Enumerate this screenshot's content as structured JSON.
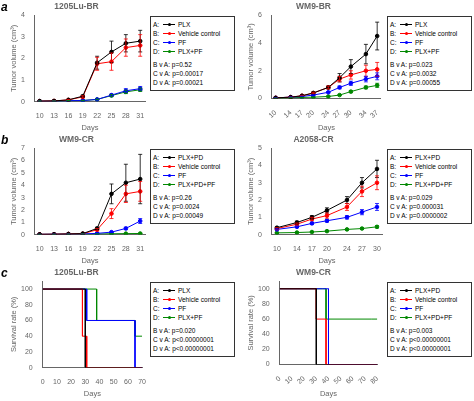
{
  "chart_data": [
    {
      "type": "line",
      "title": "1205Lu-BR",
      "panel_label": "a",
      "xlabel": "Days",
      "ylabel": "Tumor volume (cm³)",
      "x": [
        10,
        13,
        16,
        19,
        22,
        25,
        28,
        31
      ],
      "xlim": [
        9,
        32
      ],
      "xticks": [
        10,
        13,
        16,
        19,
        22,
        25,
        28,
        31
      ],
      "ylim": [
        0,
        4
      ],
      "yticks": [
        0,
        1,
        2,
        3,
        4
      ],
      "grid": false,
      "legend": "right",
      "marker": "o",
      "series": [
        {
          "name": "PLX",
          "key": "A:",
          "color": "#000000",
          "values": [
            0.02,
            0.03,
            0.08,
            0.25,
            1.8,
            2.3,
            2.7,
            2.8
          ],
          "errors": [
            0.01,
            0.01,
            0.02,
            0.05,
            0.3,
            0.5,
            0.4,
            0.5
          ]
        },
        {
          "name": "Vehicle control",
          "key": "B:",
          "color": "#ff0000",
          "values": [
            0.02,
            0.03,
            0.08,
            0.22,
            1.75,
            1.85,
            2.5,
            2.6
          ],
          "errors": [
            0.01,
            0.01,
            0.02,
            0.05,
            0.3,
            0.4,
            0.4,
            0.5
          ]
        },
        {
          "name": "PF",
          "key": "C:",
          "color": "#0000ff",
          "values": [
            0.02,
            0.02,
            0.04,
            0.05,
            0.1,
            0.3,
            0.5,
            0.6
          ],
          "errors": [
            0.01,
            0.01,
            0.01,
            0.01,
            0.02,
            0.05,
            0.1,
            0.1
          ]
        },
        {
          "name": "PLX+PF",
          "key": "D:",
          "color": "#008800",
          "values": [
            0.02,
            0.02,
            0.04,
            0.05,
            0.1,
            0.28,
            0.45,
            0.55
          ],
          "errors": [
            0.01,
            0.01,
            0.01,
            0.01,
            0.02,
            0.05,
            0.08,
            0.08
          ]
        }
      ],
      "annotations": [
        "B v A: p=0.52",
        "C v A: p=0.00017",
        "D v A: p=0.00021"
      ]
    },
    {
      "type": "line",
      "title": "WM9-BR",
      "xlabel": "Days",
      "ylabel": "Tumor volume (cm³)",
      "x": [
        10,
        14,
        17,
        20,
        24,
        27,
        30,
        34,
        37
      ],
      "xlim": [
        9,
        38
      ],
      "xticks": [
        10,
        14,
        17,
        20,
        24,
        27,
        30,
        34,
        37
      ],
      "ylim": [
        0,
        6
      ],
      "yticks": [
        0,
        2,
        4,
        6
      ],
      "grid": false,
      "legend": "right",
      "marker": "o",
      "series": [
        {
          "name": "PLX",
          "key": "A:",
          "color": "#000000",
          "values": [
            0.05,
            0.1,
            0.2,
            0.4,
            0.8,
            1.5,
            2.3,
            3.2,
            4.5
          ],
          "errors": [
            0.01,
            0.02,
            0.03,
            0.05,
            0.1,
            0.3,
            0.5,
            0.7,
            1.0
          ]
        },
        {
          "name": "Vehicle control",
          "key": "B:",
          "color": "#ff0000",
          "values": [
            0.05,
            0.1,
            0.2,
            0.4,
            0.8,
            1.4,
            1.7,
            2.0,
            2.1
          ],
          "errors": [
            0.01,
            0.02,
            0.03,
            0.05,
            0.1,
            0.2,
            0.3,
            0.4,
            0.5
          ]
        },
        {
          "name": "PF",
          "key": "C:",
          "color": "#0000ff",
          "values": [
            0.05,
            0.1,
            0.15,
            0.25,
            0.45,
            0.8,
            1.1,
            1.4,
            1.6
          ],
          "errors": [
            0.01,
            0.02,
            0.02,
            0.03,
            0.05,
            0.1,
            0.15,
            0.2,
            0.25
          ]
        },
        {
          "name": "PLX+PF",
          "key": "D:",
          "color": "#008800",
          "values": [
            0.02,
            0.05,
            0.08,
            0.1,
            0.15,
            0.25,
            0.5,
            0.8,
            0.95
          ],
          "errors": [
            0.01,
            0.01,
            0.01,
            0.02,
            0.02,
            0.03,
            0.08,
            0.1,
            0.15
          ]
        }
      ],
      "annotations": [
        "B v A: p=0.023",
        "C v A: p=0.0032",
        "D v A: p=0.00055"
      ]
    },
    {
      "type": "line",
      "title": "WM9-CR",
      "panel_label": "b",
      "xlabel": "Days",
      "ylabel": "Tumor volume (cm³)",
      "x": [
        10,
        13,
        16,
        19,
        22,
        25,
        28,
        31
      ],
      "xlim": [
        9,
        32
      ],
      "xticks": [
        10,
        13,
        16,
        19,
        22,
        25,
        28,
        31
      ],
      "ylim": [
        0,
        7
      ],
      "yticks": [
        0,
        1,
        2,
        3,
        4,
        5,
        6,
        7
      ],
      "grid": false,
      "legend": "right",
      "marker": "o",
      "series": [
        {
          "name": "PLX+PD",
          "key": "A:",
          "color": "#000000",
          "values": [
            0.02,
            0.03,
            0.05,
            0.08,
            0.5,
            3.3,
            4.2,
            4.5
          ],
          "errors": [
            0.01,
            0.01,
            0.01,
            0.02,
            0.1,
            0.8,
            1.5,
            2.0
          ]
        },
        {
          "name": "Vehicle control",
          "key": "B:",
          "color": "#ff0000",
          "values": [
            0.02,
            0.03,
            0.05,
            0.07,
            0.4,
            1.7,
            3.3,
            3.5
          ],
          "errors": [
            0.01,
            0.01,
            0.01,
            0.01,
            0.1,
            0.4,
            0.7,
            0.8
          ]
        },
        {
          "name": "PF",
          "key": "C:",
          "color": "#0000ff",
          "values": [
            0.02,
            0.03,
            0.04,
            0.05,
            0.1,
            0.2,
            0.5,
            1.1
          ],
          "errors": [
            0.01,
            0.01,
            0.01,
            0.01,
            0.02,
            0.04,
            0.1,
            0.2
          ]
        },
        {
          "name": "PLX+PD+PF",
          "key": "D:",
          "color": "#008800",
          "values": [
            0.02,
            0.02,
            0.03,
            0.04,
            0.05,
            0.07,
            0.08,
            0.09
          ],
          "errors": [
            0.005,
            0.005,
            0.005,
            0.01,
            0.01,
            0.01,
            0.01,
            0.01
          ]
        }
      ],
      "annotations": [
        "B v A: p=0.26",
        "C v A: p=0.0024",
        "D v A: p=0.00049"
      ]
    },
    {
      "type": "line",
      "title": "A2058-CR",
      "xlabel": "Days",
      "ylabel": "Tumor volume (cm³)",
      "x": [
        10,
        14,
        17,
        20,
        24,
        27,
        30
      ],
      "xlim": [
        9,
        31
      ],
      "xticks": [
        10,
        14,
        17,
        20,
        24,
        27,
        30
      ],
      "ylim": [
        0,
        5
      ],
      "yticks": [
        0,
        1,
        2,
        3,
        4,
        5
      ],
      "grid": false,
      "legend": "right",
      "marker": "o",
      "series": [
        {
          "name": "PLX+PD",
          "key": "A:",
          "color": "#000000",
          "values": [
            0.4,
            0.7,
            1.0,
            1.4,
            2.0,
            3.0,
            3.8
          ],
          "errors": [
            0.05,
            0.08,
            0.1,
            0.15,
            0.2,
            0.3,
            0.5
          ]
        },
        {
          "name": "Vehicle control",
          "key": "B:",
          "color": "#ff0000",
          "values": [
            0.35,
            0.6,
            0.9,
            1.1,
            1.6,
            2.5,
            3.0
          ],
          "errors": [
            0.05,
            0.07,
            0.1,
            0.15,
            0.2,
            0.3,
            0.4
          ]
        },
        {
          "name": "PF",
          "key": "C:",
          "color": "#0000ff",
          "values": [
            0.3,
            0.45,
            0.65,
            0.8,
            1.0,
            1.3,
            1.6
          ],
          "errors": [
            0.04,
            0.05,
            0.07,
            0.08,
            0.1,
            0.15,
            0.2
          ]
        },
        {
          "name": "PLX+PD+PF",
          "key": "D:",
          "color": "#008800",
          "values": [
            0.1,
            0.12,
            0.15,
            0.2,
            0.3,
            0.35,
            0.45
          ],
          "errors": [
            0.02,
            0.02,
            0.02,
            0.03,
            0.04,
            0.05,
            0.07
          ]
        }
      ],
      "annotations": [
        "B v A: p=0.029",
        "C v A: p=0.000031",
        "D v A: p=0.0000002"
      ]
    },
    {
      "type": "line",
      "title": "1205Lu-BR",
      "panel_label": "c",
      "xlabel": "Days",
      "ylabel": "Survival rate (%)",
      "xlim": [
        0,
        70
      ],
      "xticks": [
        0,
        10,
        20,
        30,
        40,
        50,
        60,
        70
      ],
      "ylim": [
        0,
        110
      ],
      "yticks": [
        0,
        20,
        40,
        60,
        80,
        100
      ],
      "grid": false,
      "legend": "right",
      "marker": "none",
      "series": [
        {
          "name": "PLX",
          "key": "A:",
          "color": "#000000",
          "x": [
            0,
            30,
            30,
            70
          ],
          "values": [
            100,
            100,
            0,
            0
          ]
        },
        {
          "name": "Vehicle control",
          "key": "B:",
          "color": "#ff0000",
          "x": [
            0,
            28,
            28,
            31,
            31,
            70
          ],
          "values": [
            100,
            100,
            40,
            40,
            0,
            0
          ]
        },
        {
          "name": "PF",
          "key": "C:",
          "color": "#0000ff",
          "x": [
            0,
            31,
            31,
            65,
            65,
            70
          ],
          "values": [
            100,
            100,
            60,
            60,
            0,
            0
          ]
        },
        {
          "name": "PLX+PF",
          "key": "D:",
          "color": "#008800",
          "x": [
            0,
            38,
            38,
            65,
            65,
            70
          ],
          "values": [
            100,
            100,
            60,
            60,
            40,
            40
          ]
        }
      ],
      "annotations": [
        "B v A: p=0.020",
        "C v A: p<0.00000001",
        "D v A: p<0.00000001"
      ]
    },
    {
      "type": "line",
      "title": "WM9-CR",
      "xlabel": "Days",
      "ylabel": "Survival rate (%)",
      "xlim": [
        0,
        80
      ],
      "xticks": [
        0,
        10,
        20,
        30,
        40,
        50,
        60,
        70,
        80
      ],
      "ylim": [
        0,
        110
      ],
      "yticks": [
        0,
        20,
        40,
        60,
        80,
        100
      ],
      "grid": false,
      "legend": "right",
      "marker": "none",
      "series": [
        {
          "name": "PLX+PD",
          "key": "A:",
          "color": "#000000",
          "x": [
            0,
            30,
            30,
            80
          ],
          "values": [
            100,
            100,
            0,
            0
          ]
        },
        {
          "name": "Vehicle control",
          "key": "B:",
          "color": "#ff0000",
          "x": [
            0,
            30,
            30,
            38,
            38,
            80
          ],
          "values": [
            100,
            100,
            60,
            60,
            0,
            0
          ]
        },
        {
          "name": "PF",
          "key": "C:",
          "color": "#0000ff",
          "x": [
            0,
            35,
            35,
            40,
            40,
            80
          ],
          "values": [
            100,
            100,
            100,
            100,
            0,
            0
          ]
        },
        {
          "name": "PLX+PD+PF",
          "key": "D:",
          "color": "#008800",
          "x": [
            0,
            38,
            38,
            75,
            75,
            80
          ],
          "values": [
            100,
            100,
            60,
            60,
            60,
            60
          ]
        }
      ],
      "annotations": [
        "B v A: p=0.003",
        "C v A: p<0.00000001",
        "D v A: p<0.00000001"
      ]
    }
  ]
}
